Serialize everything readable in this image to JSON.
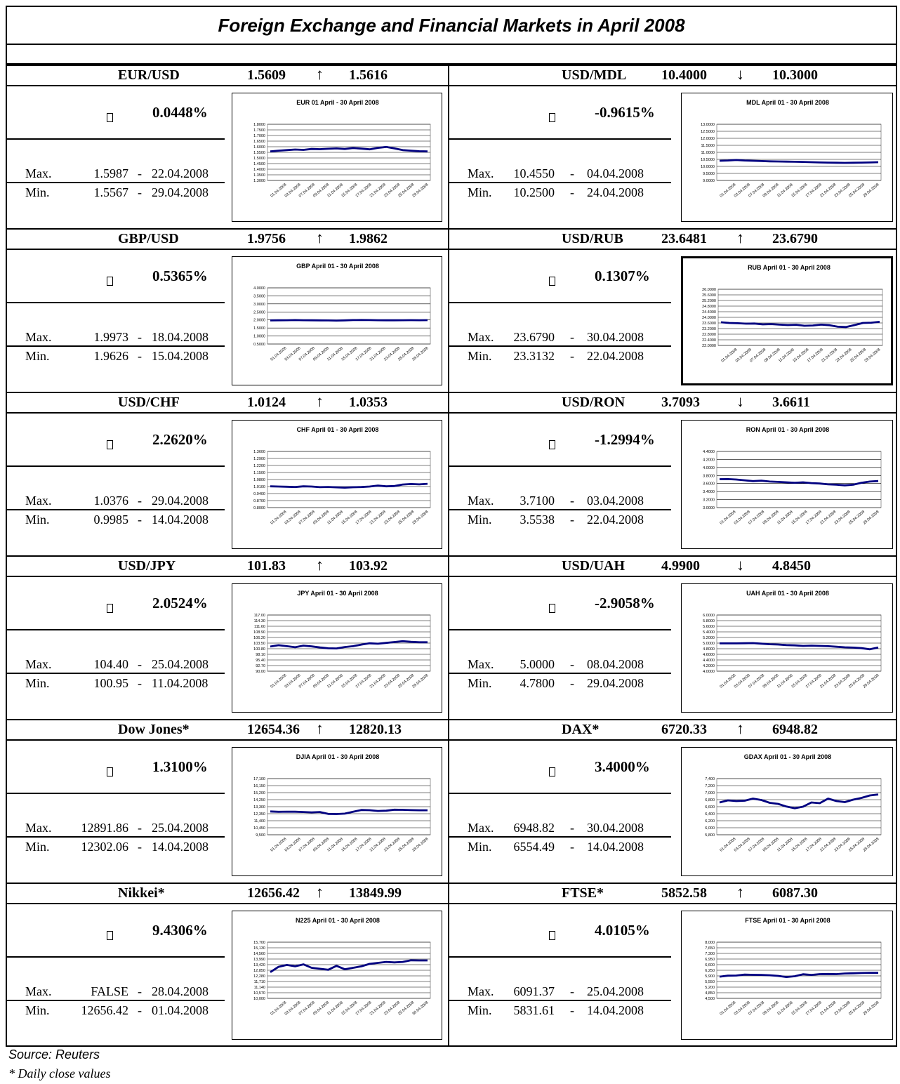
{
  "page": {
    "title": "Foreign Exchange and Financial Markets in April 2008",
    "source": "Source: Reuters",
    "note": "* Daily close values"
  },
  "colors": {
    "line": "#000080",
    "border": "#000000"
  },
  "panels": [
    {
      "name": "EUR/USD",
      "open": "1.5609",
      "dir": "up",
      "arrow": "↑",
      "close": "1.5616",
      "pct": "0.0448%",
      "max_label": "Max.",
      "max_value": "1.5987",
      "max_sep": "-",
      "max_date": "22.04.2008",
      "min_label": "Min.",
      "min_value": "1.5567",
      "min_sep": "-",
      "min_date": "29.04.2008",
      "chart_title": "EUR 01 April - 30 April 2008",
      "yticks": [
        "1.8000",
        "1.7500",
        "1.7000",
        "1.6500",
        "1.6000",
        "1.5500",
        "1.5000",
        "1.4500",
        "1.4000",
        "1.3500",
        "1.3000"
      ],
      "ymin": 1.3,
      "ymax": 1.8,
      "xticks": [
        "01.04.2008",
        "03.04.2008",
        "07.04.2008",
        "09.04.2008",
        "11.04.2008",
        "15.04.2008",
        "17.04.2008",
        "21.04.2008",
        "23.04.2008",
        "25.04.2008",
        "29.04.2008"
      ],
      "values": [
        1.558,
        1.565,
        1.57,
        1.575,
        1.572,
        1.58,
        1.578,
        1.582,
        1.585,
        1.58,
        1.589,
        1.583,
        1.577,
        1.59,
        1.598,
        1.585,
        1.57,
        1.565,
        1.56,
        1.558
      ],
      "thick": false
    },
    {
      "name": "USD/MDL",
      "open": "10.4000",
      "dir": "down",
      "arrow": "↓",
      "close": "10.3000",
      "pct": "-0.9615%",
      "max_label": "Max.",
      "max_value": "10.4550",
      "max_sep": "-",
      "max_date": "04.04.2008",
      "min_label": "Min.",
      "min_value": "10.2500",
      "min_sep": "-",
      "min_date": "24.04.2008",
      "chart_title": "MDL April 01 - 30 April 2008",
      "yticks": [
        "13.0000",
        "12.5000",
        "12.0000",
        "11.5000",
        "11.0000",
        "10.5000",
        "10.0000",
        "9.5000",
        "9.0000"
      ],
      "ymin": 9.0,
      "ymax": 13.0,
      "xticks": [
        "01.04.2008",
        "03.04.2008",
        "07.04.2008",
        "09.04.2008",
        "11.04.2008",
        "15.04.2008",
        "17.04.2008",
        "21.04.2008",
        "23.04.2008",
        "25.04.2008",
        "29.04.2008"
      ],
      "values": [
        10.4,
        10.42,
        10.455,
        10.42,
        10.4,
        10.38,
        10.36,
        10.35,
        10.34,
        10.33,
        10.32,
        10.3,
        10.28,
        10.27,
        10.26,
        10.25,
        10.26,
        10.27,
        10.28,
        10.3
      ],
      "thick": false
    },
    {
      "name": "GBP/USD",
      "open": "1.9756",
      "dir": "up",
      "arrow": "↑",
      "close": "1.9862",
      "pct": "0.5365%",
      "max_label": "Max.",
      "max_value": "1.9973",
      "max_sep": "-",
      "max_date": "18.04.2008",
      "min_label": "Min.",
      "min_value": "1.9626",
      "min_sep": "-",
      "min_date": "15.04.2008",
      "chart_title": "GBP April 01 - 30 April 2008",
      "yticks": [
        "4.0000",
        "3.5000",
        "3.0000",
        "2.5000",
        "2.0000",
        "1.5000",
        "1.0000",
        "0.5000"
      ],
      "ymin": 0.5,
      "ymax": 4.0,
      "xticks": [
        "01.04.2008",
        "03.04.2008",
        "07.04.2008",
        "09.04.2008",
        "11.04.2008",
        "15.04.2008",
        "17.04.2008",
        "21.04.2008",
        "23.04.2008",
        "25.04.2008",
        "29.04.2008"
      ],
      "values": [
        1.976,
        1.98,
        1.985,
        1.99,
        1.985,
        1.98,
        1.975,
        1.97,
        1.963,
        1.975,
        1.99,
        1.997,
        1.99,
        1.985,
        1.98,
        1.98,
        1.985,
        1.986,
        1.985,
        1.986
      ],
      "thick": false
    },
    {
      "name": "USD/RUB",
      "open": "23.6481",
      "dir": "up",
      "arrow": "↑",
      "close": "23.6790",
      "pct": "0.1307%",
      "max_label": "Max.",
      "max_value": "23.6790",
      "max_sep": "-",
      "max_date": "30.04.2008",
      "min_label": "Min.",
      "min_value": "23.3132",
      "min_sep": "-",
      "min_date": "22.04.2008",
      "chart_title": "RUB April 01 - 30 April 2008",
      "yticks": [
        "26.0000",
        "25.6000",
        "25.2000",
        "24.8000",
        "24.4000",
        "24.0000",
        "23.6000",
        "23.2000",
        "22.8000",
        "22.4000",
        "22.0000"
      ],
      "ymin": 22.0,
      "ymax": 26.0,
      "xticks": [
        "01.04.2008",
        "03.04.2008",
        "07.04.2008",
        "09.04.2008",
        "11.04.2008",
        "15.04.2008",
        "17.04.2008",
        "21.04.2008",
        "23.04.2008",
        "25.04.2008",
        "29.04.2008"
      ],
      "values": [
        23.65,
        23.6,
        23.58,
        23.55,
        23.56,
        23.5,
        23.52,
        23.48,
        23.45,
        23.47,
        23.4,
        23.42,
        23.48,
        23.44,
        23.33,
        23.31,
        23.45,
        23.6,
        23.62,
        23.68
      ],
      "thick": true
    },
    {
      "name": "USD/CHF",
      "open": "1.0124",
      "dir": "up",
      "arrow": "↑",
      "close": "1.0353",
      "pct": "2.2620%",
      "max_label": "Max.",
      "max_value": "1.0376",
      "max_sep": "-",
      "max_date": "29.04.2008",
      "min_label": "Min.",
      "min_value": "0.9985",
      "min_sep": "-",
      "min_date": "14.04.2008",
      "chart_title": "CHF April 01 - 30 April 2008",
      "yticks": [
        "1.3600",
        "1.2900",
        "1.2200",
        "1.1500",
        "1.0800",
        "1.0100",
        "0.9400",
        "0.8700",
        "0.8000"
      ],
      "ymin": 0.8,
      "ymax": 1.36,
      "xticks": [
        "01.04.2008",
        "03.04.2008",
        "07.04.2008",
        "09.04.2008",
        "11.04.2008",
        "15.04.2008",
        "17.04.2008",
        "21.04.2008",
        "23.04.2008",
        "25.04.2008",
        "29.04.2008"
      ],
      "values": [
        1.012,
        1.01,
        1.008,
        1.005,
        1.012,
        1.01,
        1.004,
        1.006,
        1.002,
        0.9985,
        1.003,
        1.005,
        1.01,
        1.02,
        1.012,
        1.015,
        1.03,
        1.035,
        1.032,
        1.0376
      ],
      "thick": false
    },
    {
      "name": "USD/RON",
      "open": "3.7093",
      "dir": "down",
      "arrow": "↓",
      "close": "3.6611",
      "pct": "-1.2994%",
      "max_label": "Max.",
      "max_value": "3.7100",
      "max_sep": "-",
      "max_date": "03.04.2008",
      "min_label": "Min.",
      "min_value": "3.5538",
      "min_sep": "-",
      "min_date": "22.04.2008",
      "chart_title": "RON April 01 - 30 April 2008",
      "yticks": [
        "4.4000",
        "4.2000",
        "4.0000",
        "3.8000",
        "3.6000",
        "3.4000",
        "3.2000",
        "3.0000"
      ],
      "ymin": 3.0,
      "ymax": 4.4,
      "xticks": [
        "01.04.2008",
        "03.04.2008",
        "07.04.2008",
        "09.04.2008",
        "11.04.2008",
        "15.04.2008",
        "17.04.2008",
        "21.04.2008",
        "23.04.2008",
        "25.04.2008",
        "29.04.2008"
      ],
      "values": [
        3.709,
        3.71,
        3.7,
        3.68,
        3.66,
        3.67,
        3.65,
        3.64,
        3.63,
        3.62,
        3.63,
        3.61,
        3.6,
        3.58,
        3.57,
        3.555,
        3.57,
        3.62,
        3.65,
        3.661
      ],
      "thick": false
    },
    {
      "name": "USD/JPY",
      "open": "101.83",
      "dir": "up",
      "arrow": "↑",
      "close": "103.92",
      "pct": "2.0524%",
      "max_label": "Max.",
      "max_value": "104.40",
      "max_sep": "-",
      "max_date": "25.04.2008",
      "min_label": "Min.",
      "min_value": "100.95",
      "min_sep": "-",
      "min_date": "11.04.2008",
      "chart_title": "JPY April 01 - 30 April 2008",
      "yticks": [
        "117.00",
        "114.30",
        "111.60",
        "108.90",
        "106.20",
        "103.50",
        "100.80",
        "98.10",
        "95.40",
        "92.70",
        "90.00"
      ],
      "ymin": 90.0,
      "ymax": 117.0,
      "xticks": [
        "01.04.2008",
        "03.04.2008",
        "07.04.2008",
        "09.04.2008",
        "11.04.2008",
        "15.04.2008",
        "17.04.2008",
        "21.04.2008",
        "23.04.2008",
        "25.04.2008",
        "29.04.2008"
      ],
      "values": [
        101.83,
        102.5,
        102.0,
        101.5,
        102.3,
        101.9,
        101.4,
        101.0,
        100.95,
        101.6,
        102.0,
        102.8,
        103.4,
        103.2,
        103.6,
        104.0,
        104.4,
        104.1,
        103.9,
        103.92
      ],
      "thick": false
    },
    {
      "name": "USD/UAH",
      "open": "4.9900",
      "dir": "down",
      "arrow": "↓",
      "close": "4.8450",
      "pct": "-2.9058%",
      "max_label": "Max.",
      "max_value": "5.0000",
      "max_sep": "-",
      "max_date": "08.04.2008",
      "min_label": "Min.",
      "min_value": "4.7800",
      "min_sep": "-",
      "min_date": "29.04.2008",
      "chart_title": "UAH April 01 - 30 April 2008",
      "yticks": [
        "6.0000",
        "5.8000",
        "5.6000",
        "5.4000",
        "5.2000",
        "5.0000",
        "4.8000",
        "4.6000",
        "4.4000",
        "4.2000",
        "4.0000"
      ],
      "ymin": 4.0,
      "ymax": 6.0,
      "xticks": [
        "01.04.2008",
        "03.04.2008",
        "07.04.2008",
        "09.04.2008",
        "11.04.2008",
        "15.04.2008",
        "17.04.2008",
        "21.04.2008",
        "23.04.2008",
        "25.04.2008",
        "29.04.2008"
      ],
      "values": [
        4.99,
        4.99,
        4.99,
        4.995,
        5.0,
        4.98,
        4.96,
        4.95,
        4.93,
        4.92,
        4.9,
        4.91,
        4.9,
        4.89,
        4.87,
        4.85,
        4.84,
        4.82,
        4.78,
        4.845
      ],
      "thick": false
    },
    {
      "name": "Dow Jones*",
      "open": "12654.36",
      "dir": "up",
      "arrow": "↑",
      "close": "12820.13",
      "pct": "1.3100%",
      "max_label": "Max.",
      "max_value": "12891.86",
      "max_sep": "-",
      "max_date": "25.04.2008",
      "min_label": "Min.",
      "min_value": "12302.06",
      "min_sep": "-",
      "min_date": "14.04.2008",
      "chart_title": "DJIA April 01 - 30 April 2008",
      "yticks": [
        "17,100",
        "16,150",
        "15,200",
        "14,250",
        "13,300",
        "12,350",
        "11,400",
        "10,450",
        "9,500"
      ],
      "ymin": 9500,
      "ymax": 17100,
      "xticks": [
        "01.04.2008",
        "03.04.2008",
        "07.04.2008",
        "09.04.2008",
        "11.04.2008",
        "15.04.2008",
        "17.04.2008",
        "21.04.2008",
        "23.04.2008",
        "25.04.2008",
        "29.04.2008"
      ],
      "values": [
        12654,
        12608,
        12626,
        12612,
        12577,
        12527,
        12581,
        12325,
        12302,
        12362,
        12619,
        12849,
        12825,
        12720,
        12763,
        12891,
        12871,
        12832,
        12820,
        12820
      ],
      "thick": false
    },
    {
      "name": "DAX*",
      "open": "6720.33",
      "dir": "up",
      "arrow": "↑",
      "close": "6948.82",
      "pct": "3.4000%",
      "max_label": "Max.",
      "max_value": "6948.82",
      "max_sep": "-",
      "max_date": "30.04.2008",
      "min_label": "Min.",
      "min_value": "6554.49",
      "min_sep": "-",
      "min_date": "14.04.2008",
      "chart_title": "GDAX April 01 - 30 April 2008",
      "yticks": [
        "7,400",
        "7,200",
        "7,000",
        "6,800",
        "6,600",
        "6,400",
        "6,200",
        "6,000",
        "5,800"
      ],
      "ymin": 5800,
      "ymax": 7400,
      "xticks": [
        "01.04.2008",
        "03.04.2008",
        "07.04.2008",
        "09.04.2008",
        "11.04.2008",
        "15.04.2008",
        "17.04.2008",
        "21.04.2008",
        "23.04.2008",
        "25.04.2008",
        "29.04.2008"
      ],
      "values": [
        6720,
        6780,
        6760,
        6770,
        6830,
        6790,
        6710,
        6680,
        6604,
        6554,
        6600,
        6720,
        6700,
        6830,
        6760,
        6730,
        6800,
        6850,
        6920,
        6948.82
      ],
      "thick": false
    },
    {
      "name": "Nikkei*",
      "open": "12656.42",
      "dir": "up",
      "arrow": "↑",
      "close": "13849.99",
      "pct": "9.4306%",
      "max_label": "Max.",
      "max_value": "FALSE",
      "max_sep": "-",
      "max_date": "28.04.2008",
      "min_label": "Min.",
      "min_value": "12656.42",
      "min_sep": "-",
      "min_date": "01.04.2008",
      "chart_title": "N225 April 01 - 30 April 2008",
      "yticks": [
        "15,700",
        "15,130",
        "14,560",
        "13,990",
        "13,420",
        "12,850",
        "12,280",
        "11,710",
        "11,140",
        "10,570",
        "10,000"
      ],
      "ymin": 10000,
      "ymax": 15700,
      "xticks": [
        "01.04.2008",
        "03.04.2008",
        "07.04.2008",
        "09.04.2008",
        "11.04.2008",
        "15.04.2008",
        "17.04.2008",
        "21.04.2008",
        "23.04.2008",
        "25.04.2008",
        "30.04.2008"
      ],
      "values": [
        12656,
        13200,
        13390,
        13250,
        13450,
        13100,
        13000,
        12900,
        13300,
        12950,
        13100,
        13250,
        13500,
        13600,
        13700,
        13650,
        13700,
        13860,
        13850,
        13849.99
      ],
      "thick": false
    },
    {
      "name": "FTSE*",
      "open": "5852.58",
      "dir": "up",
      "arrow": "↑",
      "close": "6087.30",
      "pct": "4.0105%",
      "max_label": "Max.",
      "max_value": "6091.37",
      "max_sep": "-",
      "max_date": "25.04.2008",
      "min_label": "Min.",
      "min_value": "5831.61",
      "min_sep": "-",
      "min_date": "14.04.2008",
      "chart_title": "FTSE April 01 - 30 April 2008",
      "yticks": [
        "8,000",
        "7,650",
        "7,300",
        "6,950",
        "6,600",
        "6,250",
        "5,900",
        "5,550",
        "5,200",
        "4,850",
        "4,500"
      ],
      "ymin": 4500,
      "ymax": 8000,
      "xticks": [
        "01.04.2008",
        "03.04.2008",
        "07.04.2008",
        "09.04.2008",
        "11.04.2008",
        "15.04.2008",
        "17.04.2008",
        "21.04.2008",
        "23.04.2008",
        "25.04.2008",
        "29.04.2008"
      ],
      "values": [
        5852,
        5915,
        5920,
        5980,
        5965,
        5960,
        5940,
        5900,
        5831,
        5880,
        6000,
        5960,
        6010,
        6020,
        6010,
        6050,
        6060,
        6080,
        6091,
        6087.3
      ],
      "thick": false
    }
  ]
}
